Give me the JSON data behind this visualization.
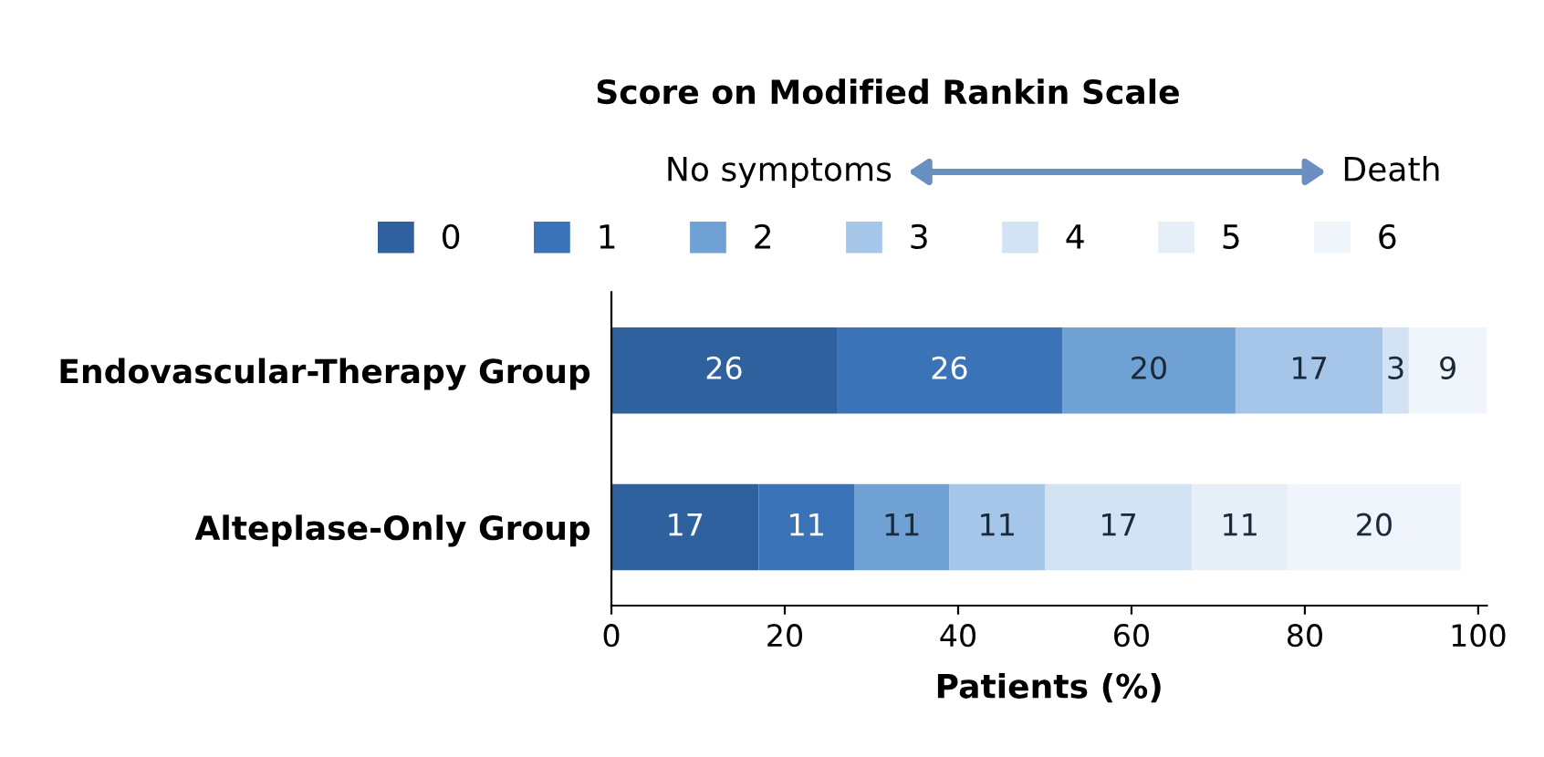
{
  "chart_data": {
    "type": "bar",
    "orientation": "horizontal",
    "stacked": true,
    "title": "Score on Modified Rankin Scale",
    "annotations": [
      "No symptoms",
      "Death"
    ],
    "xlabel": "Patients (%)",
    "categories": [
      "Endovascular-Therapy Group",
      "Alteplase-Only Group"
    ],
    "series": [
      {
        "name": "0",
        "color": "#2f619f",
        "values": [
          26,
          17
        ],
        "value_labels": [
          "26",
          "17"
        ]
      },
      {
        "name": "1",
        "color": "#3b73b9",
        "values": [
          26,
          11
        ],
        "value_labels": [
          "26",
          "11"
        ]
      },
      {
        "name": "2",
        "color": "#6fa1d5",
        "values": [
          20,
          11
        ],
        "value_labels": [
          "20",
          "11"
        ]
      },
      {
        "name": "3",
        "color": "#a5c6e9",
        "values": [
          17,
          11
        ],
        "value_labels": [
          "17",
          "11"
        ]
      },
      {
        "name": "4",
        "color": "#d3e3f4",
        "values": [
          3,
          17
        ],
        "value_labels": [
          "3",
          "17"
        ]
      },
      {
        "name": "5",
        "color": "#e6eef8",
        "values": [
          0,
          11
        ],
        "value_labels": [
          null,
          "11"
        ]
      },
      {
        "name": "6",
        "color": "#eff5fb",
        "values": [
          9,
          20
        ],
        "value_labels": [
          "9",
          "20"
        ]
      }
    ],
    "xlim": [
      0,
      101
    ],
    "xticks": [
      0,
      20,
      40,
      60,
      80,
      100
    ],
    "legend": "top",
    "grid": false
  }
}
